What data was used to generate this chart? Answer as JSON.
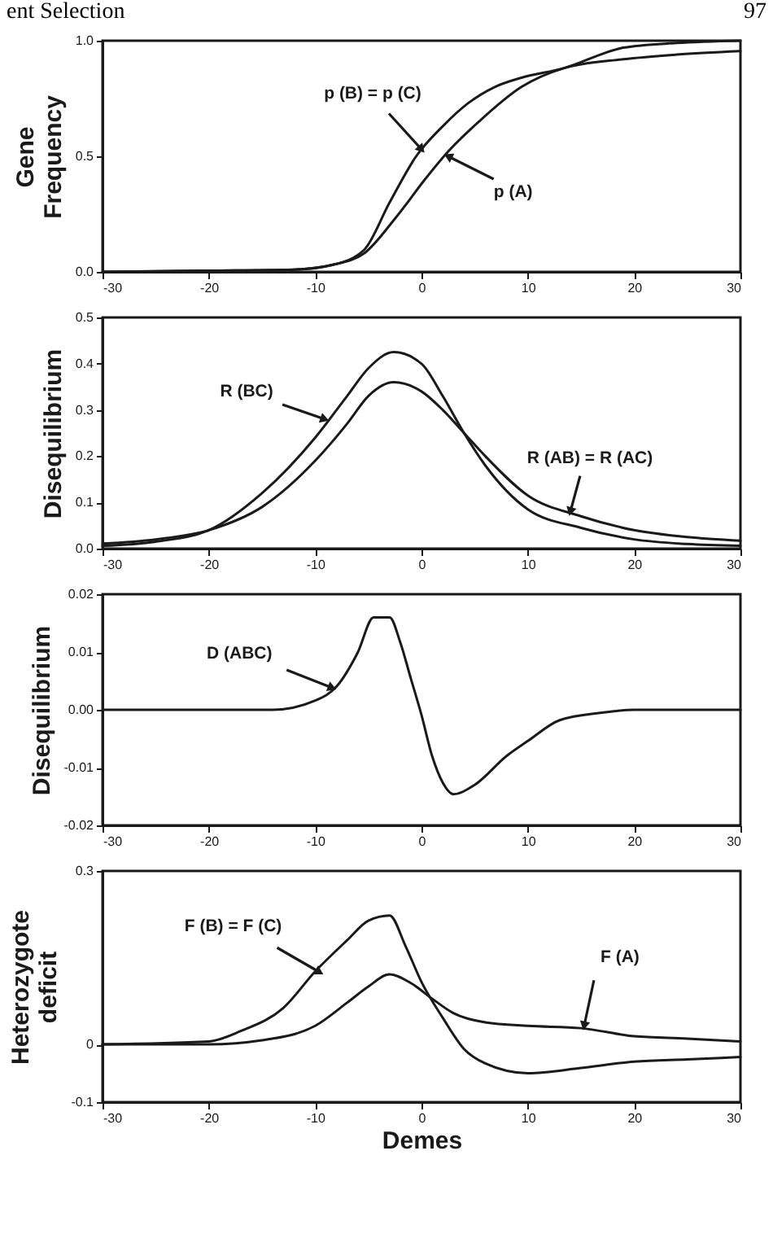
{
  "chart_data": [
    {
      "type": "line",
      "annotations": [
        "ent Selection",
        "97",
        {
          "text": "p (B) = p (C)",
          "x": 0,
          "y": 0.53
        },
        {
          "text": "p (A)",
          "x": 2.5,
          "y": 0.5
        }
      ],
      "ylabel": "Gene Frequency",
      "xlim": [
        -30,
        30
      ],
      "xticks": [
        -30,
        -20,
        -10,
        0,
        10,
        20,
        30
      ],
      "ylim": [
        0,
        1
      ],
      "yticks": [
        {
          "value": 0,
          "label": "0.0"
        },
        {
          "value": 0.5,
          "label": "0.5"
        },
        {
          "value": 1,
          "label": "1.0"
        }
      ],
      "series": [
        {
          "color": "#1a1a1a",
          "x": [
            -30,
            -20,
            -12,
            -8.4,
            -5.4,
            -3,
            -0.5,
            2,
            4.4,
            6.9,
            9.4,
            13.3,
            19,
            24,
            30
          ],
          "values": [
            0,
            0.005,
            0.01,
            0.03,
            0.095,
            0.3,
            0.5,
            0.63,
            0.73,
            0.8,
            0.84,
            0.88,
            0.97,
            0.99,
            1
          ]
        },
        {
          "color": "#1a1a1a",
          "x": [
            -30,
            -20,
            -12,
            -8.4,
            -5.4,
            -2.5,
            0.5,
            2.5,
            5.4,
            9.4,
            13.3,
            19,
            24,
            30
          ],
          "values": [
            0,
            0.005,
            0.01,
            0.03,
            0.08,
            0.23,
            0.41,
            0.52,
            0.65,
            0.8,
            0.88,
            0.92,
            0.94,
            0.955
          ]
        }
      ]
    },
    {
      "type": "line",
      "annotations": [
        {
          "text": "R (BC)",
          "x": -9.1,
          "y": 0.28
        },
        {
          "text": "R (AB) = R (AC)",
          "x": 14,
          "y": 0.08
        }
      ],
      "ylabel": "Disequilibrium",
      "xlim": [
        -30,
        30
      ],
      "xticks": [
        -30,
        -20,
        -10,
        0,
        10,
        20,
        30
      ],
      "ylim": [
        0,
        0.5
      ],
      "yticks": [
        {
          "value": 0,
          "label": "0.0"
        },
        0.1,
        0.2,
        0.3,
        0.4,
        0.5
      ],
      "series": [
        {
          "color": "#1a1a1a",
          "x": [
            -30,
            -25,
            -20,
            -15,
            -10,
            -7,
            -5,
            -2.6,
            0,
            2,
            4,
            6,
            10,
            15,
            20,
            25,
            30
          ],
          "values": [
            0.006,
            0.015,
            0.04,
            0.12,
            0.24,
            0.33,
            0.39,
            0.425,
            0.4,
            0.33,
            0.25,
            0.18,
            0.085,
            0.045,
            0.02,
            0.01,
            0.006
          ]
        },
        {
          "color": "#1a1a1a",
          "x": [
            -30,
            -25,
            -20,
            -15,
            -10,
            -7,
            -5,
            -2.6,
            0,
            2,
            4,
            6,
            10,
            15,
            20,
            25,
            30
          ],
          "values": [
            0.011,
            0.02,
            0.04,
            0.09,
            0.19,
            0.27,
            0.33,
            0.36,
            0.34,
            0.3,
            0.25,
            0.2,
            0.115,
            0.07,
            0.04,
            0.025,
            0.017
          ]
        }
      ]
    },
    {
      "type": "line",
      "annotations": [
        {
          "text": "D (ABC)",
          "x": -8.4,
          "y": 0.0038
        }
      ],
      "ylabel": "Disequilibrium",
      "xlim": [
        -30,
        30
      ],
      "xticks": [
        -30,
        -20,
        -10,
        0,
        10,
        20,
        30
      ],
      "ylim": [
        -0.02,
        0.02
      ],
      "yticks": [
        {
          "value": -0.02,
          "label": "-0.02"
        },
        {
          "value": -0.01,
          "label": "-0.01"
        },
        {
          "value": 0,
          "label": "0.00"
        },
        {
          "value": 0.01,
          "label": "0.01"
        },
        {
          "value": 0.02,
          "label": "0.02"
        }
      ],
      "series": [
        {
          "color": "#1a1a1a",
          "x": [
            -30,
            -14,
            -10,
            -8,
            -6,
            -4.5,
            -3,
            -2,
            -1,
            0,
            1,
            2,
            3,
            5,
            8,
            10,
            13,
            17,
            20,
            30
          ],
          "values": [
            0,
            0,
            0.0016,
            0.004,
            0.0099,
            0.016,
            0.016,
            0.0117,
            0.0054,
            -0.0009,
            -0.008,
            -0.0126,
            -0.0146,
            -0.013,
            -0.008,
            -0.0054,
            -0.0018,
            -0.0005,
            0,
            0
          ]
        }
      ]
    },
    {
      "type": "line",
      "annotations": [
        {
          "text": "F (B) = F (C)",
          "x": -9.6,
          "y": 0.125
        },
        {
          "text": "F (A)",
          "x": 15.3,
          "y": 0.032
        }
      ],
      "xlabel": "Demes",
      "ylabel": "Heterozygote deficit",
      "xlim": [
        -30,
        30
      ],
      "xticks": [
        -30,
        -20,
        -10,
        0,
        10,
        20,
        30
      ],
      "ylim": [
        -0.1,
        0.3
      ],
      "yticks": [
        -0.1,
        0,
        0.3
      ],
      "series": [
        {
          "color": "#1a1a1a",
          "x": [
            -30,
            -20,
            -17,
            -13,
            -10,
            -7,
            -5,
            -3,
            -1.5,
            0,
            2,
            4,
            6,
            10,
            15,
            20,
            25,
            30
          ],
          "values": [
            0,
            0.005,
            0.023,
            0.063,
            0.126,
            0.18,
            0.214,
            0.223,
            0.17,
            0.108,
            0.046,
            -0.008,
            -0.033,
            -0.05,
            -0.041,
            -0.03,
            -0.026,
            -0.022
          ]
        },
        {
          "color": "#1a1a1a",
          "x": [
            -30,
            -20,
            -15,
            -10,
            -7,
            -5,
            -3,
            -1,
            1,
            3,
            6,
            10,
            15,
            20,
            25,
            30
          ],
          "values": [
            0,
            0,
            0.007,
            0.032,
            0.072,
            0.1,
            0.121,
            0.106,
            0.079,
            0.054,
            0.038,
            0.032,
            0.028,
            0.014,
            0.01,
            0.005
          ]
        }
      ]
    }
  ]
}
